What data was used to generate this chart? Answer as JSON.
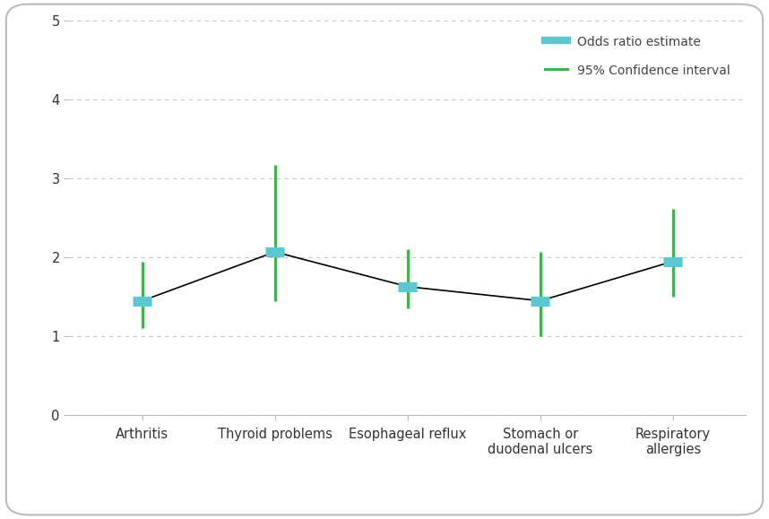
{
  "categories": [
    "Arthritis",
    "Thyroid problems",
    "Esophageal reflux",
    "Stomach or\nduodenal ulcers",
    "Respiratory\nallergies"
  ],
  "odds_ratios": [
    1.45,
    2.07,
    1.63,
    1.45,
    1.95
  ],
  "ci_lower": [
    1.1,
    1.45,
    1.35,
    1.0,
    1.5
  ],
  "ci_upper": [
    1.95,
    3.17,
    2.1,
    2.07,
    2.62
  ],
  "line_color": "#000000",
  "odds_color": "#5bc8d0",
  "ci_color": "#3cb54a",
  "legend_label_odds": "Odds ratio estimate",
  "legend_label_ci": "95% Confidence interval",
  "ylim": [
    0,
    5
  ],
  "yticks": [
    0,
    1,
    2,
    3,
    4,
    5
  ],
  "background_color": "#ffffff",
  "grid_color": "#c8c8c8",
  "odds_linewidth": 8,
  "ci_linewidth": 2.2,
  "connect_linewidth": 1.2,
  "tick_label_fontsize": 10.5,
  "legend_fontsize": 10,
  "border_color": "#bbbbbb"
}
